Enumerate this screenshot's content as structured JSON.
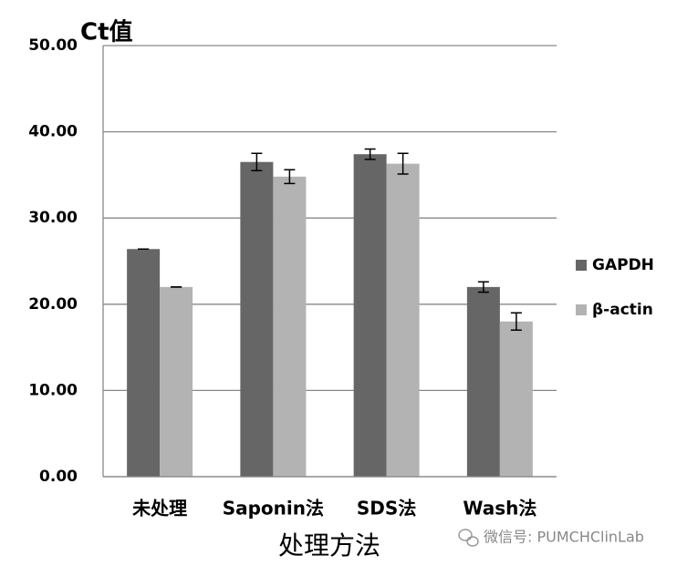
{
  "chart_data": {
    "type": "bar",
    "y_label": "Ct值",
    "x_label": "处理方法",
    "categories": [
      "未处理",
      "Saponin法",
      "SDS法",
      "Wash法"
    ],
    "series": [
      {
        "name": "GAPDH",
        "color": "#666666",
        "values": [
          26.4,
          36.5,
          37.4,
          22.0
        ],
        "errors": [
          0,
          1.0,
          0.6,
          0.6
        ]
      },
      {
        "name": "β-actin",
        "color": "#b3b3b3",
        "values": [
          22.0,
          34.8,
          36.3,
          18.0
        ],
        "errors": [
          0,
          0.8,
          1.2,
          1.0
        ]
      }
    ],
    "ylim": [
      0,
      50
    ],
    "yticks": [
      {
        "value": 0,
        "label": "0.00"
      },
      {
        "value": 10,
        "label": "10.00"
      },
      {
        "value": 20,
        "label": "20.00"
      },
      {
        "value": 30,
        "label": "30.00"
      },
      {
        "value": 40,
        "label": "40.00"
      },
      {
        "value": 50,
        "label": "50.00"
      }
    ],
    "grid": true,
    "legend": "right",
    "watermark": "微信号: PUMCHClinLab"
  }
}
